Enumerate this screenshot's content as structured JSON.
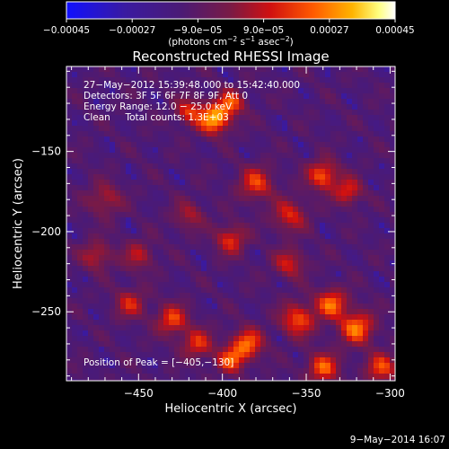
{
  "colorbar": {
    "ticks": [
      "−0.00045",
      "−0.00027",
      "−9.0e−05",
      "9.0e−05",
      "0.00027",
      "0.00045"
    ],
    "tick_values": [
      -0.00045,
      -0.00027,
      -9e-05,
      9e-05,
      0.00027,
      0.00045
    ],
    "range": [
      -0.00045,
      0.00045
    ],
    "unit_parts": [
      "(photons cm",
      "−2",
      " s",
      "−1",
      " asec",
      "−2",
      ")"
    ]
  },
  "chart_data": {
    "type": "heatmap",
    "title": "Reconstructed RHESSI Image",
    "xlabel": "Heliocentric X (arcsec)",
    "ylabel": "Heliocentric Y (arcsec)",
    "xlim": [
      -493,
      -297
    ],
    "ylim": [
      -293,
      -97
    ],
    "x_ticks": [
      -450,
      -400,
      -350,
      -300
    ],
    "x_tick_labels": [
      "−450",
      "−400",
      "−350",
      "−300"
    ],
    "y_ticks": [
      -150,
      -200,
      -250
    ],
    "y_tick_labels": [
      "−150",
      "−200",
      "−250"
    ],
    "annotations": [
      "27−May−2012 15:39:48.000 to 15:42:40.000",
      "Detectors: 3F 5F 6F 7F 8F 9F, Att 0",
      "Energy Range: 12.0 − 25.0 keV",
      "Clean     Total counts: 1.3E+03"
    ],
    "peak_label": "Position of Peak = [−405,−130]",
    "peak": [
      -405,
      -130
    ],
    "colormap": "blue-purple-red-yellow-white",
    "value_range": [
      -0.00045,
      0.00045
    ]
  },
  "footer": {
    "timestamp": "9−May−2014 16:07"
  }
}
